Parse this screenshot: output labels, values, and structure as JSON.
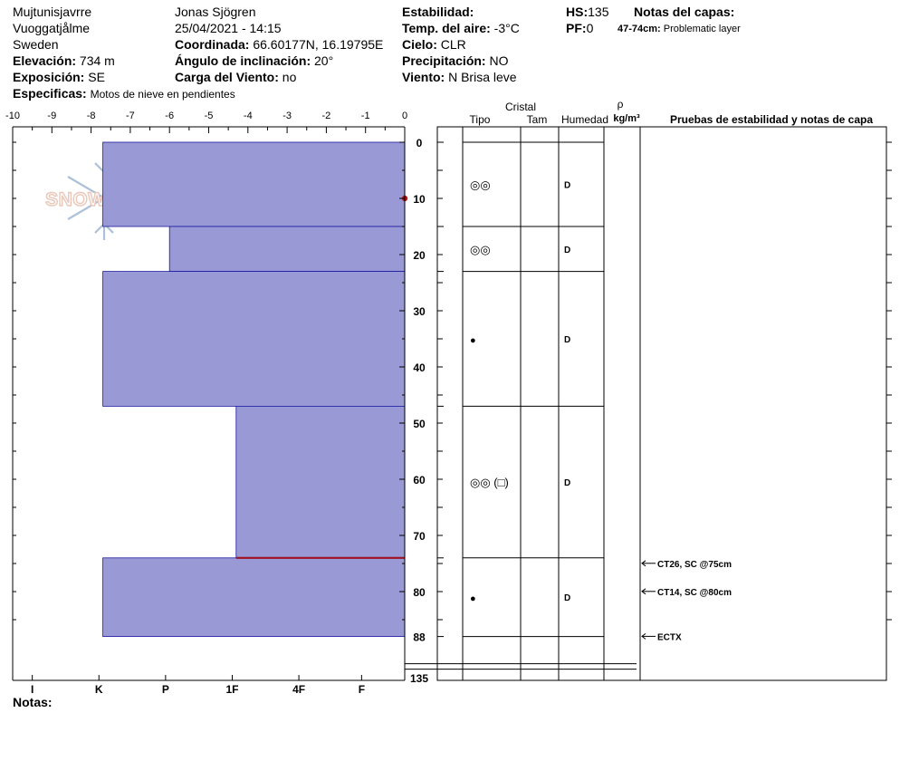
{
  "header": {
    "location": "Mujtunisjavrre",
    "area": "Vuoggatjålme",
    "country": "Sweden",
    "elevation_label": "Elevación:",
    "elevation_value": "734 m",
    "aspect_label": "Exposición:",
    "aspect_value": "SE",
    "specifics_label": "Especificas:",
    "specifics_value": "Motos de nieve en pendientes",
    "observer": "Jonas Sjögren",
    "datetime": "25/04/2021 - 14:15",
    "coords_label": "Coordinada:",
    "coords_value": "66.60177N, 16.19795E",
    "incline_label": "Ángulo de inclinación:",
    "incline_value": "20°",
    "wind_load_label": "Carga del Viento:",
    "wind_load_value": "no",
    "stability_label": "Estabilidad:",
    "air_temp_label": "Temp. del aire:",
    "air_temp_value": "-3°C",
    "sky_label": "Cielo:",
    "sky_value": "CLR",
    "precip_label": "Precipitación:",
    "precip_value": "NO",
    "wind_label": "Viento:",
    "wind_value": "N Brisa leve",
    "hs_label": "HS:",
    "hs_value": "135",
    "pf_label": "PF:",
    "pf_value": "0",
    "layer_notes_label": "Notas del capas:",
    "layer_note_range": "47-74cm:",
    "layer_note_text": "Problematic layer"
  },
  "column_headers": {
    "cristal": "Cristal",
    "tipo": "Tipo",
    "tam": "Tam",
    "humedad": "Humedad",
    "rho": "ρ",
    "density_unit": "kg/m³",
    "tests": "Pruebas de estabilidad y notas de capa"
  },
  "notes_label": "Notas:",
  "logo_text": "SNOWPILOT",
  "chart_data": {
    "type": "bar",
    "title": "",
    "temperature_axis": {
      "label": "",
      "ticks": [
        "-10",
        "-9",
        "-8",
        "-7",
        "-6",
        "-5",
        "-4",
        "-3",
        "-2",
        "-1",
        "0"
      ],
      "range": [
        -10,
        0
      ]
    },
    "depth_axis": {
      "label": "",
      "ticks": [
        "0",
        "10",
        "20",
        "30",
        "40",
        "50",
        "60",
        "70",
        "80",
        "88",
        "135"
      ],
      "range_top_cm": [
        0,
        88
      ],
      "total_cm": 135
    },
    "hardness_axis": {
      "ticks": [
        "I",
        "K",
        "P",
        "1F",
        "4F",
        "F"
      ]
    },
    "temperature_points": [
      {
        "depth_cm": 10,
        "temp_c": 0
      }
    ],
    "layers": [
      {
        "top_cm": 0,
        "bottom_cm": 15,
        "hardness_value": -7.7,
        "grain": "◎◎",
        "moisture": "D"
      },
      {
        "top_cm": 15,
        "bottom_cm": 23,
        "hardness_value": -6.0,
        "grain": "◎◎",
        "moisture": "D"
      },
      {
        "top_cm": 23,
        "bottom_cm": 47,
        "hardness_value": -7.7,
        "grain": "●",
        "moisture": "D"
      },
      {
        "top_cm": 47,
        "bottom_cm": 74,
        "hardness_value": -4.3,
        "grain": "◎◎ (□)",
        "moisture": "D"
      },
      {
        "top_cm": 74,
        "bottom_cm": 88,
        "hardness_value": -7.7,
        "grain": "●",
        "moisture": "D"
      }
    ],
    "problematic_interface_cm": 74,
    "stability_tests": [
      {
        "depth_cm": 74,
        "text": "CT26, SC @75cm"
      },
      {
        "depth_cm": 79,
        "text": "CT14, SC @80cm"
      },
      {
        "depth_cm": 87,
        "text": "ECTX"
      }
    ],
    "colors": {
      "layer_fill": "#9999d6",
      "layer_stroke": "#1a1aa0",
      "weak_layer": "#a01020",
      "temp_point": "#b01818"
    }
  }
}
